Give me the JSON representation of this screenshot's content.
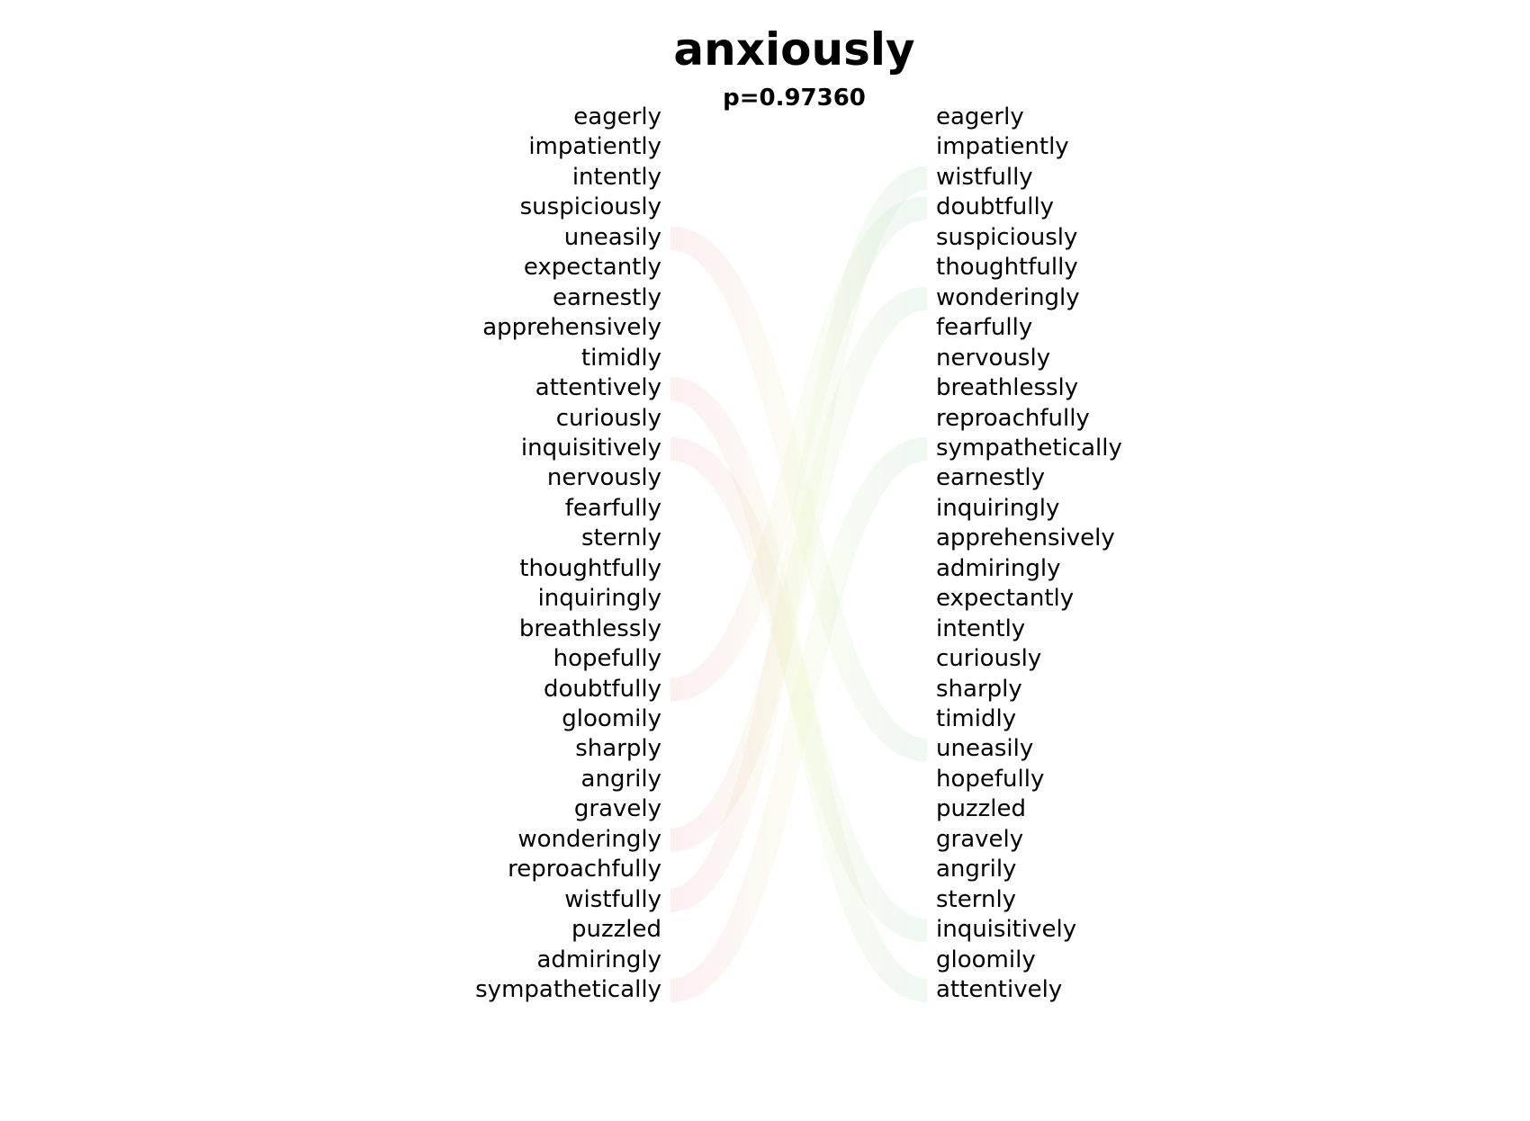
{
  "chart_data": {
    "type": "bump",
    "title": "anxiously",
    "subtitle": "p=0.97360",
    "left": [
      "eagerly",
      "impatiently",
      "intently",
      "suspiciously",
      "uneasily",
      "expectantly",
      "earnestly",
      "apprehensively",
      "timidly",
      "attentively",
      "curiously",
      "inquisitively",
      "nervously",
      "fearfully",
      "sternly",
      "thoughtfully",
      "inquiringly",
      "breathlessly",
      "hopefully",
      "doubtfully",
      "gloomily",
      "sharply",
      "angrily",
      "gravely",
      "wonderingly",
      "reproachfully",
      "wistfully",
      "puzzled",
      "admiringly",
      "sympathetically"
    ],
    "right": [
      "eagerly",
      "impatiently",
      "wistfully",
      "doubtfully",
      "suspiciously",
      "thoughtfully",
      "wonderingly",
      "fearfully",
      "nervously",
      "breathlessly",
      "reproachfully",
      "sympathetically",
      "earnestly",
      "inquiringly",
      "apprehensively",
      "admiringly",
      "expectantly",
      "intently",
      "curiously",
      "sharply",
      "timidly",
      "uneasily",
      "hopefully",
      "puzzled",
      "gravely",
      "angrily",
      "sternly",
      "inquisitively",
      "gloomily",
      "attentively"
    ],
    "highlighted_left": [
      "uneasily",
      "attentively",
      "inquisitively",
      "doubtfully",
      "wonderingly",
      "wistfully",
      "sympathetically"
    ],
    "highlighted_right": [
      "wistfully",
      "doubtfully",
      "wonderingly",
      "sympathetically",
      "uneasily",
      "inquisitively",
      "attentively"
    ],
    "colors": {
      "down": "#f7b8c0",
      "up": "#b6dcc4",
      "mid": "#eef5c8"
    }
  }
}
